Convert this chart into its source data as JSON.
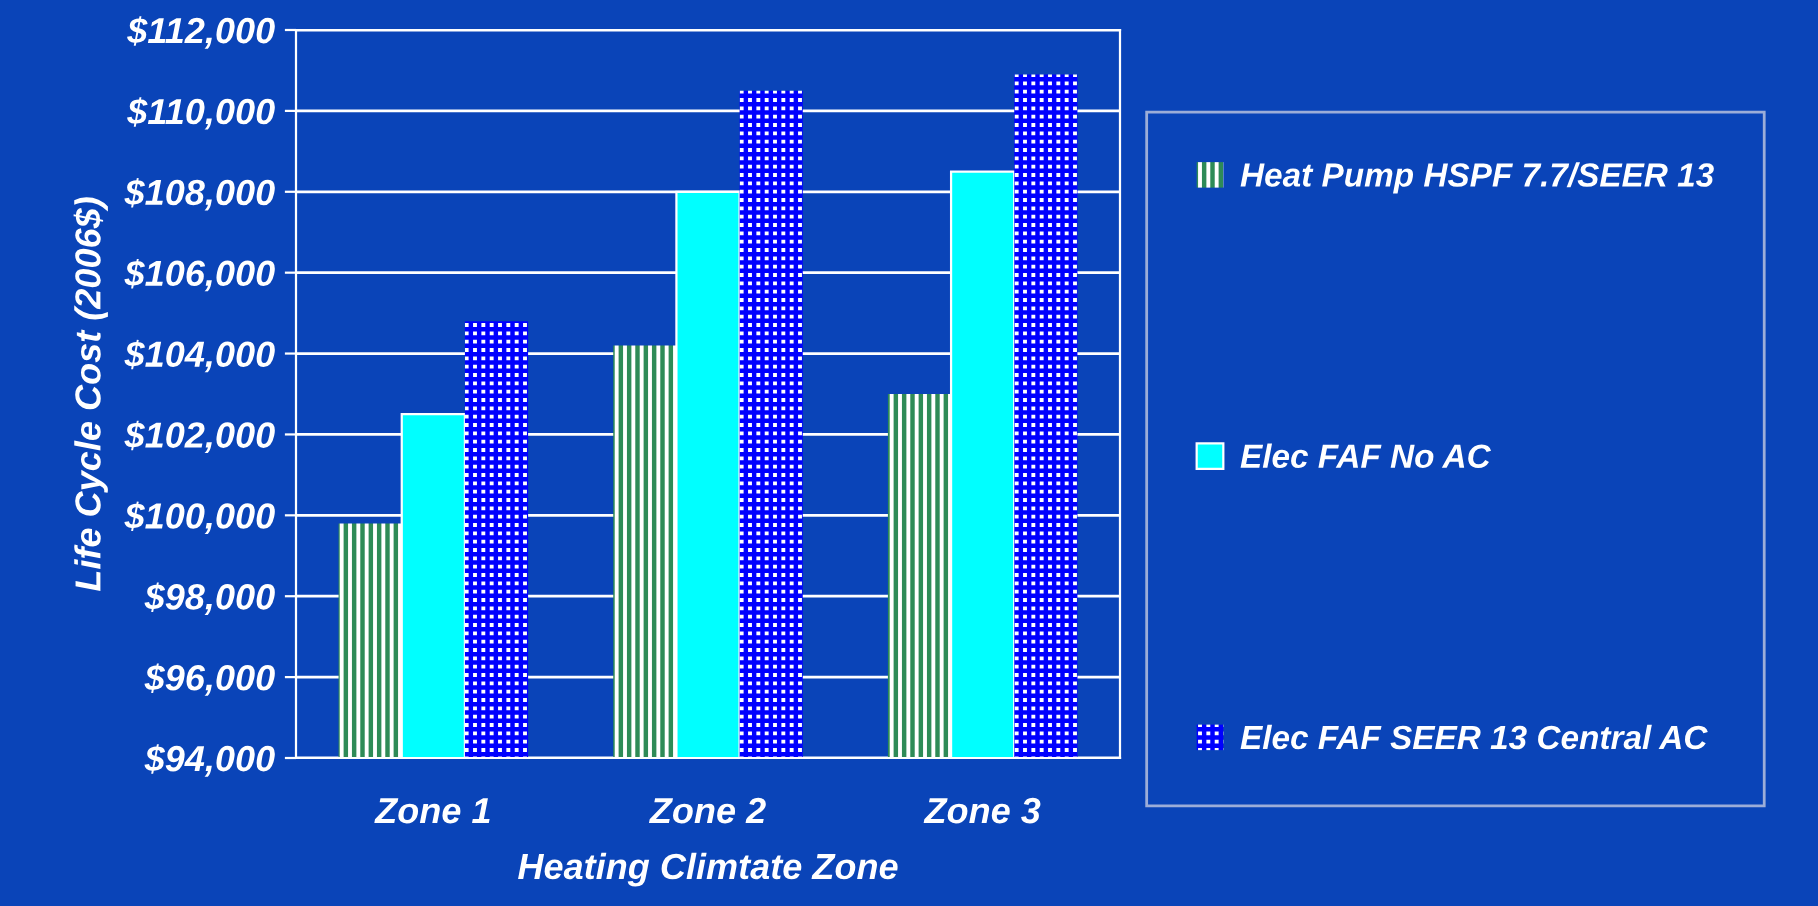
{
  "chart_data": {
    "type": "bar",
    "xlabel": "Heating Climtate Zone",
    "ylabel": "Life Cycle Cost (2006$)",
    "categories": [
      "Zone 1",
      "Zone 2",
      "Zone 3"
    ],
    "series": [
      {
        "name": "Heat Pump HSPF 7.7/SEER 13",
        "color": "#2e8b57",
        "values": [
          99800,
          104200,
          103000
        ]
      },
      {
        "name": "Elec FAF No AC",
        "color": "#00ffff",
        "values": [
          102500,
          108000,
          108500
        ]
      },
      {
        "name": "Elec FAF SEER 13 Central AC",
        "color": "#0000ff",
        "values": [
          104800,
          110500,
          110900
        ]
      }
    ],
    "ylim": [
      94000,
      112000
    ],
    "yticks": [
      {
        "value": 94000,
        "label": "$94,000"
      },
      {
        "value": 96000,
        "label": "$96,000"
      },
      {
        "value": 98000,
        "label": "$98,000"
      },
      {
        "value": 100000,
        "label": "$100,000"
      },
      {
        "value": 102000,
        "label": "$102,000"
      },
      {
        "value": 104000,
        "label": "$104,000"
      },
      {
        "value": 106000,
        "label": "$106,000"
      },
      {
        "value": 108000,
        "label": "$108,000"
      },
      {
        "value": 110000,
        "label": "$110,000"
      },
      {
        "value": 112000,
        "label": "$112,000"
      }
    ],
    "grid": "y",
    "legend": "right"
  }
}
